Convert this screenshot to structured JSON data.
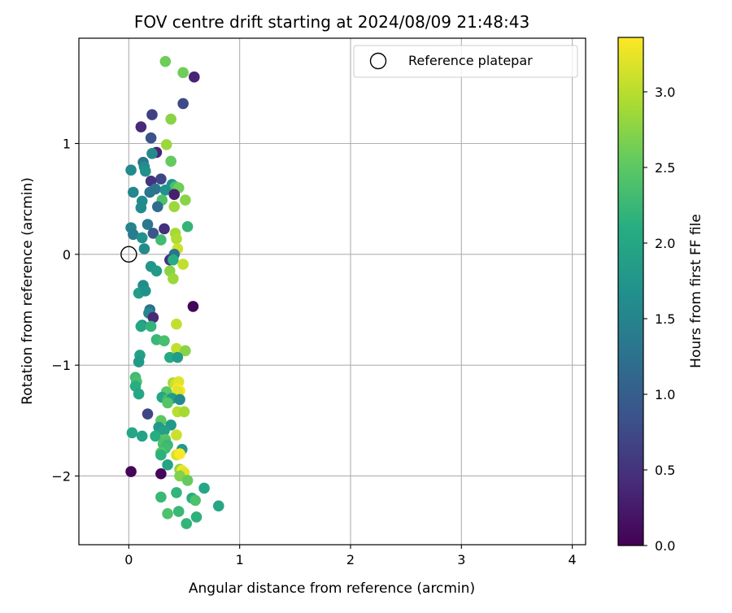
{
  "chart_data": {
    "type": "scatter",
    "title": "FOV centre drift starting at 2024/08/09 21:48:43",
    "xlabel": "Angular distance from reference (arcmin)",
    "ylabel": "Rotation from reference (arcmin)",
    "xlim": [
      -0.45,
      4.12
    ],
    "ylim": [
      -2.62,
      1.95
    ],
    "xticks": [
      0,
      1,
      2,
      3,
      4
    ],
    "yticks": [
      -2,
      -1,
      0,
      1
    ],
    "grid": true,
    "legend": {
      "position": "top-right",
      "entries": [
        {
          "label": "Reference platepar",
          "marker": "open-circle"
        }
      ]
    },
    "reference_point": {
      "x": 0,
      "y": 0
    },
    "colorbar": {
      "label": "Hours from first FF file",
      "colormap": "viridis",
      "range": [
        0,
        3.36
      ],
      "ticks": [
        0.0,
        0.5,
        1.0,
        1.5,
        2.0,
        2.5,
        3.0
      ],
      "tick_labels": [
        "0.0",
        "0.5",
        "1.0",
        "1.5",
        "2.0",
        "2.5",
        "3.0"
      ]
    },
    "points": [
      {
        "x": 0.33,
        "y": 1.74,
        "c": 2.6
      },
      {
        "x": 0.49,
        "y": 1.64,
        "c": 2.6
      },
      {
        "x": 0.59,
        "y": 1.6,
        "c": 0.35
      },
      {
        "x": 0.49,
        "y": 1.36,
        "c": 0.75
      },
      {
        "x": 0.21,
        "y": 1.26,
        "c": 0.65
      },
      {
        "x": 0.38,
        "y": 1.22,
        "c": 2.75
      },
      {
        "x": 0.11,
        "y": 1.15,
        "c": 0.4
      },
      {
        "x": 0.2,
        "y": 1.05,
        "c": 0.85
      },
      {
        "x": 0.34,
        "y": 0.99,
        "c": 2.85
      },
      {
        "x": 0.25,
        "y": 0.92,
        "c": 0.35
      },
      {
        "x": 0.21,
        "y": 0.91,
        "c": 1.6
      },
      {
        "x": 0.38,
        "y": 0.84,
        "c": 2.55
      },
      {
        "x": 0.13,
        "y": 0.83,
        "c": 1.3
      },
      {
        "x": 0.14,
        "y": 0.79,
        "c": 1.6
      },
      {
        "x": 0.02,
        "y": 0.76,
        "c": 1.6
      },
      {
        "x": 0.15,
        "y": 0.75,
        "c": 1.7
      },
      {
        "x": 0.29,
        "y": 0.68,
        "c": 0.7
      },
      {
        "x": 0.2,
        "y": 0.66,
        "c": 0.5
      },
      {
        "x": 0.39,
        "y": 0.63,
        "c": 1.7
      },
      {
        "x": 0.42,
        "y": 0.61,
        "c": 2.35
      },
      {
        "x": 0.45,
        "y": 0.6,
        "c": 2.6
      },
      {
        "x": 0.24,
        "y": 0.59,
        "c": 1.3
      },
      {
        "x": 0.33,
        "y": 0.58,
        "c": 1.7
      },
      {
        "x": 0.04,
        "y": 0.56,
        "c": 1.55
      },
      {
        "x": 0.19,
        "y": 0.56,
        "c": 1.3
      },
      {
        "x": 0.41,
        "y": 0.54,
        "c": 0.3
      },
      {
        "x": 0.3,
        "y": 0.49,
        "c": 2.4
      },
      {
        "x": 0.51,
        "y": 0.49,
        "c": 2.75
      },
      {
        "x": 0.12,
        "y": 0.48,
        "c": 1.6
      },
      {
        "x": 0.26,
        "y": 0.43,
        "c": 1.2
      },
      {
        "x": 0.11,
        "y": 0.42,
        "c": 1.6
      },
      {
        "x": 0.41,
        "y": 0.43,
        "c": 2.85
      },
      {
        "x": 0.17,
        "y": 0.27,
        "c": 1.35
      },
      {
        "x": 0.53,
        "y": 0.25,
        "c": 2.2
      },
      {
        "x": 0.02,
        "y": 0.24,
        "c": 1.5
      },
      {
        "x": 0.32,
        "y": 0.23,
        "c": 0.45
      },
      {
        "x": 0.22,
        "y": 0.19,
        "c": 0.9
      },
      {
        "x": 0.04,
        "y": 0.18,
        "c": 1.4
      },
      {
        "x": 0.42,
        "y": 0.19,
        "c": 2.9
      },
      {
        "x": 0.43,
        "y": 0.14,
        "c": 2.95
      },
      {
        "x": 0.12,
        "y": 0.15,
        "c": 1.7
      },
      {
        "x": 0.29,
        "y": 0.13,
        "c": 2.3
      },
      {
        "x": 0.14,
        "y": 0.05,
        "c": 1.6
      },
      {
        "x": 0.44,
        "y": 0.05,
        "c": 3.1
      },
      {
        "x": 0.41,
        "y": 0.0,
        "c": 1.3
      },
      {
        "x": 0.37,
        "y": -0.05,
        "c": 0.5
      },
      {
        "x": 0.4,
        "y": -0.05,
        "c": 2.1
      },
      {
        "x": 0.49,
        "y": -0.09,
        "c": 3.05
      },
      {
        "x": 0.2,
        "y": -0.11,
        "c": 1.75
      },
      {
        "x": 0.25,
        "y": -0.15,
        "c": 1.8
      },
      {
        "x": 0.37,
        "y": -0.15,
        "c": 2.75
      },
      {
        "x": 0.4,
        "y": -0.22,
        "c": 2.85
      },
      {
        "x": 0.13,
        "y": -0.28,
        "c": 1.6
      },
      {
        "x": 0.09,
        "y": -0.35,
        "c": 1.85
      },
      {
        "x": 0.15,
        "y": -0.33,
        "c": 1.7
      },
      {
        "x": 0.58,
        "y": -0.47,
        "c": 0.05
      },
      {
        "x": 0.19,
        "y": -0.5,
        "c": 1.25
      },
      {
        "x": 0.18,
        "y": -0.53,
        "c": 1.55
      },
      {
        "x": 0.22,
        "y": -0.57,
        "c": 0.4
      },
      {
        "x": 0.43,
        "y": -0.63,
        "c": 3.05
      },
      {
        "x": 0.12,
        "y": -0.64,
        "c": 1.6
      },
      {
        "x": 0.11,
        "y": -0.65,
        "c": 2.0
      },
      {
        "x": 0.2,
        "y": -0.65,
        "c": 2.2
      },
      {
        "x": 0.25,
        "y": -0.77,
        "c": 2.25
      },
      {
        "x": 0.32,
        "y": -0.78,
        "c": 2.35
      },
      {
        "x": 0.43,
        "y": -0.85,
        "c": 3.05
      },
      {
        "x": 0.51,
        "y": -0.87,
        "c": 2.75
      },
      {
        "x": 0.37,
        "y": -0.93,
        "c": 2.05
      },
      {
        "x": 0.44,
        "y": -0.93,
        "c": 1.85
      },
      {
        "x": 0.1,
        "y": -0.91,
        "c": 1.9
      },
      {
        "x": 0.09,
        "y": -0.97,
        "c": 1.8
      },
      {
        "x": 0.06,
        "y": -1.11,
        "c": 2.3
      },
      {
        "x": 0.07,
        "y": -1.15,
        "c": 2.35
      },
      {
        "x": 0.4,
        "y": -1.16,
        "c": 2.9
      },
      {
        "x": 0.42,
        "y": -1.17,
        "c": 3.1
      },
      {
        "x": 0.45,
        "y": -1.15,
        "c": 3.2
      },
      {
        "x": 0.06,
        "y": -1.19,
        "c": 2.1
      },
      {
        "x": 0.44,
        "y": -1.21,
        "c": 3.3
      },
      {
        "x": 0.46,
        "y": -1.23,
        "c": 3.35
      },
      {
        "x": 0.44,
        "y": -1.24,
        "c": 3.2
      },
      {
        "x": 0.34,
        "y": -1.24,
        "c": 2.5
      },
      {
        "x": 0.09,
        "y": -1.26,
        "c": 2.0
      },
      {
        "x": 0.3,
        "y": -1.29,
        "c": 2.0
      },
      {
        "x": 0.35,
        "y": -1.31,
        "c": 2.3
      },
      {
        "x": 0.39,
        "y": -1.3,
        "c": 1.85
      },
      {
        "x": 0.46,
        "y": -1.31,
        "c": 1.6
      },
      {
        "x": 0.35,
        "y": -1.34,
        "c": 2.45
      },
      {
        "x": 0.44,
        "y": -1.42,
        "c": 3.0
      },
      {
        "x": 0.5,
        "y": -1.42,
        "c": 2.9
      },
      {
        "x": 0.17,
        "y": -1.44,
        "c": 0.7
      },
      {
        "x": 0.29,
        "y": -1.5,
        "c": 2.5
      },
      {
        "x": 0.38,
        "y": -1.54,
        "c": 1.8
      },
      {
        "x": 0.27,
        "y": -1.56,
        "c": 1.8
      },
      {
        "x": 0.32,
        "y": -1.59,
        "c": 1.9
      },
      {
        "x": 0.03,
        "y": -1.61,
        "c": 2.0
      },
      {
        "x": 0.12,
        "y": -1.64,
        "c": 1.95
      },
      {
        "x": 0.24,
        "y": -1.64,
        "c": 2.1
      },
      {
        "x": 0.43,
        "y": -1.63,
        "c": 3.1
      },
      {
        "x": 0.33,
        "y": -1.67,
        "c": 2.45
      },
      {
        "x": 0.31,
        "y": -1.71,
        "c": 2.4
      },
      {
        "x": 0.35,
        "y": -1.72,
        "c": 2.25
      },
      {
        "x": 0.33,
        "y": -1.75,
        "c": 2.3
      },
      {
        "x": 0.48,
        "y": -1.76,
        "c": 1.8
      },
      {
        "x": 0.29,
        "y": -1.79,
        "c": 2.45
      },
      {
        "x": 0.29,
        "y": -1.81,
        "c": 2.15
      },
      {
        "x": 0.43,
        "y": -1.81,
        "c": 3.15
      },
      {
        "x": 0.46,
        "y": -1.8,
        "c": 3.35
      },
      {
        "x": 0.35,
        "y": -1.9,
        "c": 1.95
      },
      {
        "x": 0.46,
        "y": -1.94,
        "c": 2.75
      },
      {
        "x": 0.48,
        "y": -1.95,
        "c": 3.3
      },
      {
        "x": 0.02,
        "y": -1.96,
        "c": 0.05
      },
      {
        "x": 0.29,
        "y": -1.98,
        "c": 0.05
      },
      {
        "x": 0.5,
        "y": -1.97,
        "c": 3.2
      },
      {
        "x": 0.46,
        "y": -2.0,
        "c": 2.7
      },
      {
        "x": 0.53,
        "y": -2.04,
        "c": 2.55
      },
      {
        "x": 0.68,
        "y": -2.11,
        "c": 2.0
      },
      {
        "x": 0.43,
        "y": -2.15,
        "c": 2.2
      },
      {
        "x": 0.29,
        "y": -2.19,
        "c": 2.25
      },
      {
        "x": 0.57,
        "y": -2.2,
        "c": 2.1
      },
      {
        "x": 0.6,
        "y": -2.22,
        "c": 2.4
      },
      {
        "x": 0.81,
        "y": -2.27,
        "c": 2.0
      },
      {
        "x": 0.45,
        "y": -2.32,
        "c": 2.25
      },
      {
        "x": 0.35,
        "y": -2.34,
        "c": 2.4
      },
      {
        "x": 0.61,
        "y": -2.37,
        "c": 2.15
      },
      {
        "x": 0.52,
        "y": -2.43,
        "c": 2.2
      }
    ]
  }
}
